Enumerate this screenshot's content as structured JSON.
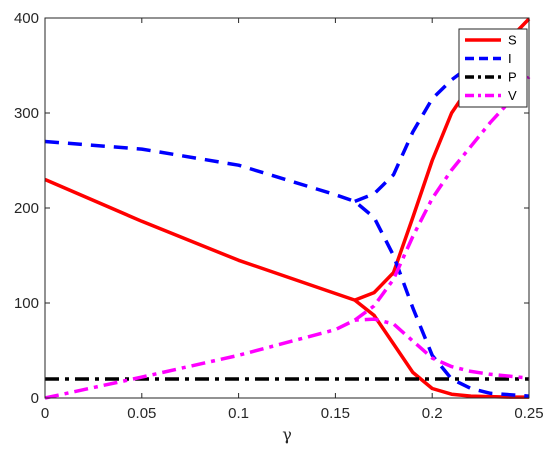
{
  "chart_data": {
    "type": "line",
    "title": "",
    "xlabel": "γ",
    "ylabel": "",
    "xlim": [
      0,
      0.25
    ],
    "ylim": [
      0,
      400
    ],
    "x_ticks": [
      "0",
      "0.05",
      "0.1",
      "0.15",
      "0.2",
      "0.25"
    ],
    "y_ticks": [
      "0",
      "100",
      "200",
      "300",
      "400"
    ],
    "grid": false,
    "legend_position": "top-right",
    "series": [
      {
        "name": "S",
        "color": "#ff0000",
        "dash": "solid",
        "points": [
          [
            0,
            230
          ],
          [
            0.05,
            186
          ],
          [
            0.1,
            145
          ],
          [
            0.15,
            110
          ],
          [
            0.16,
            103
          ],
          [
            0.17,
            87
          ],
          [
            0.18,
            57
          ],
          [
            0.19,
            27
          ],
          [
            0.2,
            10
          ],
          [
            0.21,
            4
          ],
          [
            0.22,
            2
          ],
          [
            0.24,
            1
          ],
          [
            0.25,
            1
          ]
        ]
      },
      {
        "name": "S",
        "color": "#ff0000",
        "dash": "solid",
        "points": [
          [
            0.16,
            103
          ],
          [
            0.17,
            111
          ],
          [
            0.18,
            132
          ],
          [
            0.19,
            190
          ],
          [
            0.2,
            250
          ],
          [
            0.21,
            300
          ],
          [
            0.22,
            330
          ],
          [
            0.23,
            355
          ],
          [
            0.24,
            378
          ],
          [
            0.25,
            399
          ]
        ]
      },
      {
        "name": "I",
        "color": "#0000ff",
        "dash": "dash",
        "points": [
          [
            0,
            270
          ],
          [
            0.05,
            262
          ],
          [
            0.1,
            245
          ],
          [
            0.15,
            214
          ],
          [
            0.16,
            207
          ],
          [
            0.17,
            190
          ],
          [
            0.18,
            150
          ],
          [
            0.19,
            95
          ],
          [
            0.2,
            45
          ],
          [
            0.21,
            20
          ],
          [
            0.22,
            10
          ],
          [
            0.23,
            5
          ],
          [
            0.25,
            2
          ]
        ]
      },
      {
        "name": "I",
        "color": "#0000ff",
        "dash": "dash",
        "points": [
          [
            0.16,
            207
          ],
          [
            0.17,
            215
          ],
          [
            0.18,
            235
          ],
          [
            0.19,
            280
          ],
          [
            0.2,
            315
          ],
          [
            0.21,
            335
          ],
          [
            0.22,
            350
          ],
          [
            0.23,
            360
          ],
          [
            0.24,
            370
          ],
          [
            0.25,
            380
          ]
        ]
      },
      {
        "name": "P",
        "color": "#000000",
        "dash": "dashdot",
        "points": [
          [
            0,
            20
          ],
          [
            0.25,
            20
          ]
        ]
      },
      {
        "name": "V",
        "color": "#ff00ff",
        "dash": "dashdot",
        "points": [
          [
            0,
            0
          ],
          [
            0.05,
            22
          ],
          [
            0.1,
            45
          ],
          [
            0.15,
            72
          ],
          [
            0.16,
            82
          ],
          [
            0.17,
            83
          ],
          [
            0.18,
            78
          ],
          [
            0.19,
            60
          ],
          [
            0.2,
            42
          ],
          [
            0.21,
            33
          ],
          [
            0.22,
            28
          ],
          [
            0.23,
            25
          ],
          [
            0.25,
            21
          ]
        ]
      },
      {
        "name": "V",
        "color": "#ff00ff",
        "dash": "dashdot",
        "points": [
          [
            0.16,
            82
          ],
          [
            0.17,
            97
          ],
          [
            0.18,
            125
          ],
          [
            0.19,
            170
          ],
          [
            0.2,
            210
          ],
          [
            0.21,
            240
          ],
          [
            0.22,
            265
          ],
          [
            0.23,
            290
          ],
          [
            0.24,
            312
          ],
          [
            0.25,
            338
          ]
        ]
      }
    ],
    "legend": [
      {
        "label": "S",
        "color": "#ff0000",
        "dash": "solid"
      },
      {
        "label": "I",
        "color": "#0000ff",
        "dash": "dash"
      },
      {
        "label": "P",
        "color": "#000000",
        "dash": "dashdot"
      },
      {
        "label": "V",
        "color": "#ff00ff",
        "dash": "dashdot"
      }
    ]
  }
}
